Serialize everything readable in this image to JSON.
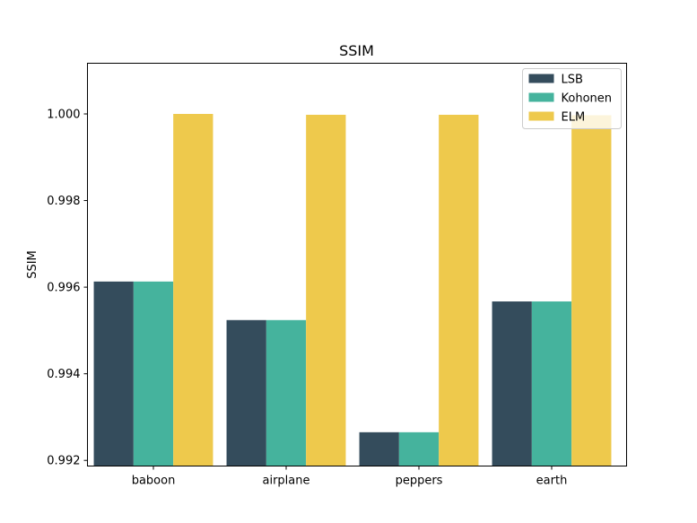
{
  "chart_data": {
    "type": "bar",
    "title": "SSIM",
    "xlabel": "",
    "ylabel": "SSIM",
    "categories": [
      "baboon",
      "airplane",
      "peppers",
      "earth"
    ],
    "series": [
      {
        "name": "LSB",
        "color": "#344c5c",
        "values": [
          0.99613,
          0.99524,
          0.99265,
          0.99567
        ]
      },
      {
        "name": "Kohonen",
        "color": "#45b39d",
        "values": [
          0.99613,
          0.99524,
          0.99265,
          0.99567
        ]
      },
      {
        "name": "ELM",
        "color": "#eec94c",
        "values": [
          1.0,
          0.99998,
          0.99998,
          0.99997
        ]
      }
    ],
    "ylim": [
      0.99187,
      1.00117
    ],
    "yticks": [
      0.992,
      0.994,
      0.996,
      0.998,
      1.0
    ],
    "ytick_labels": [
      "0.992",
      "0.994",
      "0.996",
      "0.998",
      "1.000"
    ],
    "legend_position": "top-right",
    "grid": false
  }
}
